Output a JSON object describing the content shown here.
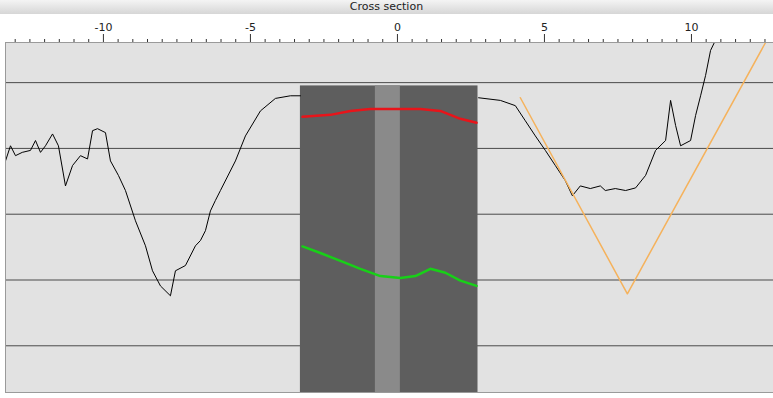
{
  "chart_data": {
    "type": "line",
    "title": "Cross section",
    "xlim": [
      -13.33,
      12.79
    ],
    "xticks": [
      -10,
      -5,
      0,
      5,
      10
    ],
    "xticks_minor": [
      -13,
      -12.5,
      -12,
      -11.5,
      -11,
      -10.5,
      -9.5,
      -9,
      -8.5,
      -8,
      -7.5,
      -7,
      -6.5,
      -6,
      -5.5,
      -4.5,
      -4,
      -3.5,
      -3,
      -2.5,
      -2,
      -1.5,
      -1,
      -0.5,
      0.5,
      1,
      1.5,
      2,
      2.5,
      3,
      3.5,
      4,
      4.5,
      5.5,
      6,
      6.5,
      7,
      7.5,
      8,
      8.5,
      9,
      9.5,
      10.5,
      11,
      11.5,
      12,
      12.5
    ],
    "ylim": [
      -0.71,
      4.61
    ],
    "yticks": [
      0,
      1,
      2,
      3,
      4
    ],
    "grid": true,
    "tick_labels": "x",
    "section": {
      "x": [
        -3.3,
        2.74
      ],
      "top": 3.95,
      "gap": [
        -0.75,
        0.1
      ],
      "color": "#5e5e5e"
    },
    "series": [
      {
        "color": "#000000",
        "x": [
          -13.33,
          -13.16,
          -12.99,
          -12.76,
          -12.48,
          -12.31,
          -12.14,
          -11.97,
          -11.73,
          -11.53,
          -11.29,
          -11.05,
          -10.78,
          -10.54,
          -10.37,
          -10.2,
          -9.93,
          -9.76,
          -9.49,
          -9.25,
          -8.91,
          -8.57,
          -8.33,
          -8.06,
          -7.72,
          -7.55,
          -7.21,
          -6.87,
          -6.7,
          -6.53,
          -6.36,
          -6.19,
          -6.02,
          -5.51,
          -5.17,
          -4.66,
          -4.15,
          -3.64,
          -3.3,
          0,
          2.76,
          3.5,
          4.01,
          4.35,
          4.69,
          5.03,
          5.37,
          5.71,
          5.95,
          6.22,
          6.56,
          6.9,
          7.07,
          7.41,
          7.76,
          8.1,
          8.44,
          8.78,
          9.12,
          9.29,
          9.46,
          9.63,
          9.97,
          10.14,
          10.31,
          10.48,
          10.65,
          10.78
        ],
        "values": [
          2.81,
          3.04,
          2.89,
          2.94,
          2.97,
          3.12,
          2.94,
          3.04,
          3.22,
          3.04,
          2.43,
          2.74,
          2.89,
          2.84,
          3.27,
          3.3,
          3.24,
          2.81,
          2.59,
          2.36,
          1.9,
          1.52,
          1.14,
          0.91,
          0.76,
          1.14,
          1.22,
          1.52,
          1.6,
          1.75,
          2.05,
          2.21,
          2.36,
          2.81,
          3.19,
          3.57,
          3.76,
          3.8,
          3.8,
          null,
          3.77,
          3.73,
          3.65,
          3.42,
          3.19,
          2.97,
          2.74,
          2.51,
          2.28,
          2.43,
          2.39,
          2.43,
          2.36,
          2.39,
          2.36,
          2.4,
          2.59,
          2.97,
          3.12,
          3.73,
          3.35,
          3.04,
          3.12,
          3.5,
          3.8,
          4.11,
          4.49,
          4.61
        ]
      },
      {
        "color": "#f5b25c",
        "x": [
          4.18,
          7.82,
          12.52
        ],
        "values": [
          3.77,
          0.79,
          4.61
        ]
      },
      {
        "color": "#e8141a",
        "x": [
          -3.23,
          -2.28,
          -1.6,
          -0.92,
          0,
          0.78,
          1.46,
          2.14,
          2.69
        ],
        "values": [
          3.48,
          3.51,
          3.57,
          3.6,
          3.6,
          3.6,
          3.57,
          3.45,
          3.39
        ]
      },
      {
        "color": "#18d018",
        "x": [
          -3.23,
          -2.62,
          -1.94,
          -1.26,
          -0.58,
          0.1,
          0.61,
          1.12,
          1.63,
          2.14,
          2.69
        ],
        "values": [
          1.51,
          1.41,
          1.29,
          1.17,
          1.06,
          1.03,
          1.06,
          1.17,
          1.11,
          0.99,
          0.91
        ]
      }
    ]
  }
}
